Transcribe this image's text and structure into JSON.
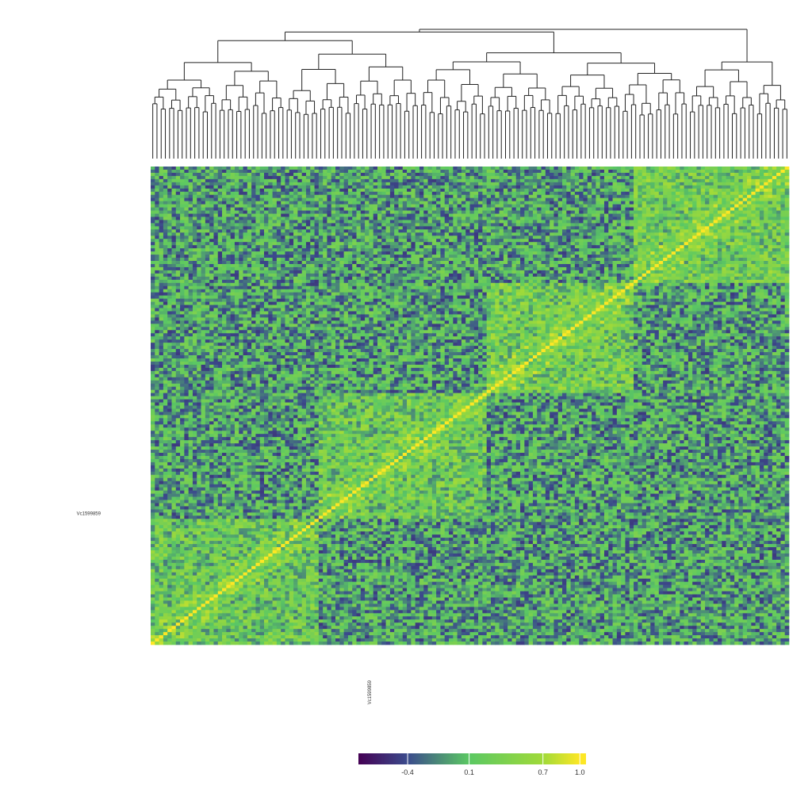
{
  "chart_data": {
    "type": "heatmap",
    "title": "",
    "xlabel": "",
    "ylabel": "",
    "n": 152,
    "highlight_label": "Vc1599859",
    "highlight_index": 52,
    "grid": false,
    "dendrogram": "top",
    "diagonal_value": 1.0,
    "colorscale": {
      "stops": [
        -0.8,
        -0.4,
        0.1,
        0.7,
        1.0
      ],
      "colors": [
        "#440154",
        "#3b4b8c",
        "#5bc863",
        "#a0da39",
        "#fde725"
      ]
    },
    "legend": {
      "position": "bottom-center",
      "ticks": [
        "-0.4",
        "0.1",
        "0.7",
        "1.0"
      ],
      "tick_values": [
        -0.4,
        0.1,
        0.7,
        1.0
      ],
      "range": [
        -0.8,
        1.05
      ]
    },
    "clusters": [
      {
        "start": 0,
        "end": 40,
        "within": 0.22
      },
      {
        "start": 40,
        "end": 80,
        "within": 0.25
      },
      {
        "start": 80,
        "end": 115,
        "within": 0.3
      },
      {
        "start": 115,
        "end": 152,
        "within": 0.28
      }
    ],
    "between_cluster_mean": -0.05
  }
}
